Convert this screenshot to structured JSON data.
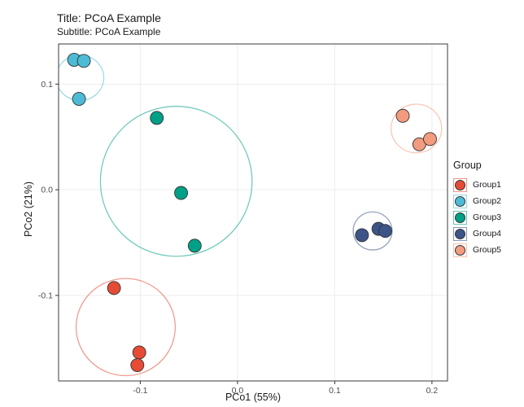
{
  "title": "Title: PCoA Example",
  "subtitle": "Subtitle: PCoA Example",
  "axes": {
    "x_title": "PCo1 (55%)",
    "y_title": "PCo2 (21%)"
  },
  "legend": {
    "title": "Group",
    "items": [
      {
        "label": "Group1",
        "color": "#E64B35"
      },
      {
        "label": "Group2",
        "color": "#4DBBD5"
      },
      {
        "label": "Group3",
        "color": "#00A087"
      },
      {
        "label": "Group4",
        "color": "#3C5488"
      },
      {
        "label": "Group5",
        "color": "#F39B7F"
      }
    ]
  },
  "colors": {
    "background": "#ffffff",
    "panel_background": "#ffffff",
    "panel_border": "#4d4d4d",
    "grid": "#ededed",
    "tick": "#333333",
    "tick_text": "#4d4d4d",
    "point_stroke": "#333333"
  },
  "chart_data": {
    "type": "scatter",
    "title": "Title: PCoA Example",
    "subtitle": "Subtitle: PCoA Example",
    "xlabel": "PCo1 (55%)",
    "ylabel": "PCo2 (21%)",
    "xlim": [
      -0.184,
      0.216
    ],
    "ylim": [
      -0.181,
      0.138
    ],
    "x_ticks": [
      {
        "value": -0.1,
        "label": "-0.1"
      },
      {
        "value": 0.0,
        "label": "0.0"
      },
      {
        "value": 0.1,
        "label": "0.1"
      },
      {
        "value": 0.2,
        "label": "0.2"
      }
    ],
    "y_ticks": [
      {
        "value": 0.1,
        "label": "0.1"
      },
      {
        "value": 0.0,
        "label": "0.0"
      },
      {
        "value": -0.1,
        "label": "-0.1"
      }
    ],
    "grid": true,
    "legend_position": "right",
    "point_radius_px": 8,
    "series": [
      {
        "name": "Group1",
        "color": "#E64B35",
        "points": [
          [
            -0.127,
            -0.093
          ],
          [
            -0.101,
            -0.154
          ],
          [
            -0.103,
            -0.166
          ]
        ],
        "ellipse": {
          "cx": -0.115,
          "cy": -0.13,
          "rx": 0.051,
          "ry": 0.046
        }
      },
      {
        "name": "Group2",
        "color": "#4DBBD5",
        "points": [
          [
            -0.168,
            0.123
          ],
          [
            -0.158,
            0.122
          ],
          [
            -0.163,
            0.086
          ]
        ],
        "ellipse": {
          "cx": -0.162,
          "cy": 0.106,
          "rx": 0.0245,
          "ry": 0.0215
        }
      },
      {
        "name": "Group3",
        "color": "#00A087",
        "points": [
          [
            -0.083,
            0.068
          ],
          [
            -0.058,
            -0.003
          ],
          [
            -0.044,
            -0.053
          ]
        ],
        "ellipse": {
          "cx": -0.063,
          "cy": 0.008,
          "rx": 0.078,
          "ry": 0.071
        }
      },
      {
        "name": "Group4",
        "color": "#3C5488",
        "points": [
          [
            0.128,
            -0.043
          ],
          [
            0.145,
            -0.037
          ],
          [
            0.152,
            -0.039
          ]
        ],
        "ellipse": {
          "cx": 0.139,
          "cy": -0.039,
          "rx": 0.02,
          "ry": 0.018
        }
      },
      {
        "name": "Group5",
        "color": "#F39B7F",
        "points": [
          [
            0.17,
            0.07
          ],
          [
            0.187,
            0.043
          ],
          [
            0.198,
            0.048
          ]
        ],
        "ellipse": {
          "cx": 0.184,
          "cy": 0.058,
          "rx": 0.026,
          "ry": 0.023
        }
      }
    ]
  }
}
